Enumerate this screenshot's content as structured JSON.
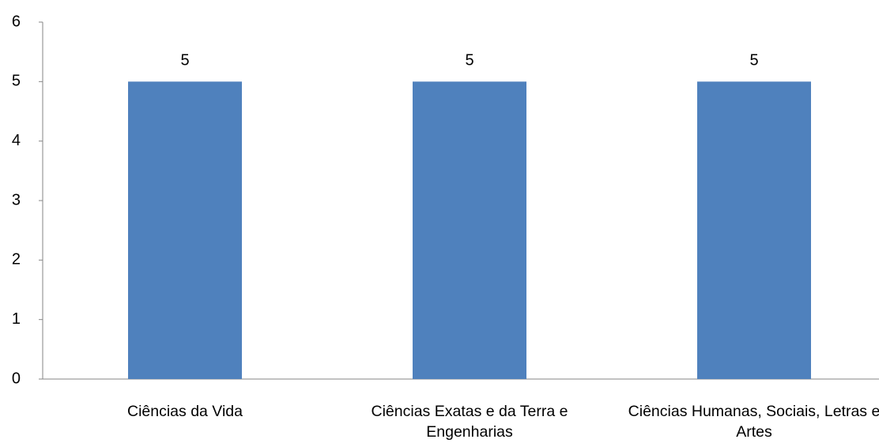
{
  "chart_data": {
    "type": "bar",
    "categories": [
      "Ciências da Vida",
      "Ciências Exatas e da Terra e Engenharias",
      "Ciências Humanas, Sociais, Letras e Artes"
    ],
    "values": [
      5,
      5,
      5
    ],
    "color": "#4f81bd",
    "ylim": [
      0,
      6
    ],
    "yticks": [
      0,
      1,
      2,
      3,
      4,
      5,
      6
    ],
    "grid": false
  }
}
